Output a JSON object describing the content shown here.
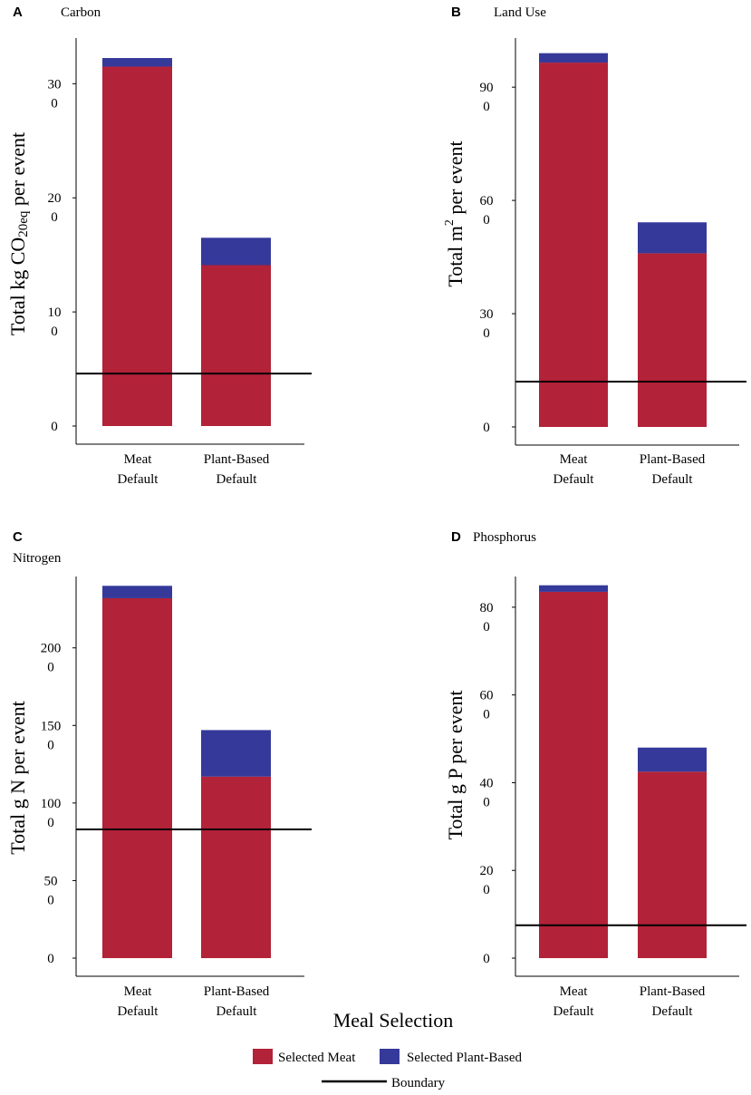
{
  "colors": {
    "meat": "#B22238",
    "plant": "#35399A",
    "boundary": "#000000"
  },
  "x_title": "Meal Selection",
  "legend": {
    "meat_label": "Selected Meat",
    "plant_label": "Selected Plant-Based",
    "boundary_label": "Boundary"
  },
  "chart_data": [
    {
      "type": "bar",
      "stacked": true,
      "panel": "A",
      "title": "Carbon",
      "ylabel": {
        "before": "Total kg CO",
        "sub": "20eq",
        "after": " per event"
      },
      "categories": [
        [
          "Meat",
          "Default"
        ],
        [
          "Plant-Based",
          "Default"
        ]
      ],
      "series": [
        {
          "name": "Selected Meat",
          "values": [
            3150,
            1410
          ]
        },
        {
          "name": "Selected Plant-Based",
          "values": [
            75,
            240
          ]
        }
      ],
      "boundary": 460,
      "ylim": [
        0,
        3400
      ],
      "ticks": [
        {
          "value": 0,
          "lines": [
            "0"
          ]
        },
        {
          "value": 1000,
          "lines": [
            "10",
            "0"
          ]
        },
        {
          "value": 2000,
          "lines": [
            "20",
            "0"
          ]
        },
        {
          "value": 3000,
          "lines": [
            "30",
            "0"
          ]
        }
      ]
    },
    {
      "type": "bar",
      "stacked": true,
      "panel": "B",
      "title": "Land Use",
      "ylabel": {
        "before": "Total m",
        "sup": "2",
        "after": " per event"
      },
      "categories": [
        [
          "Meat",
          "Default"
        ],
        [
          "Plant-Based",
          "Default"
        ]
      ],
      "series": [
        {
          "name": "Selected Meat",
          "values": [
            965,
            460
          ]
        },
        {
          "name": "Selected Plant-Based",
          "values": [
            25,
            82
          ]
        }
      ],
      "boundary": 120,
      "ylim": [
        0,
        1030
      ],
      "ticks": [
        {
          "value": 0,
          "lines": [
            "0"
          ]
        },
        {
          "value": 300,
          "lines": [
            "30",
            "0"
          ]
        },
        {
          "value": 600,
          "lines": [
            "60",
            "0"
          ]
        },
        {
          "value": 900,
          "lines": [
            "90",
            "0"
          ]
        }
      ]
    },
    {
      "type": "bar",
      "stacked": true,
      "panel": "C",
      "title": "Nitrogen",
      "ylabel": {
        "before": "Total g N per event"
      },
      "categories": [
        [
          "Meat",
          "Default"
        ],
        [
          "Plant-Based",
          "Default"
        ]
      ],
      "series": [
        {
          "name": "Selected Meat",
          "values": [
            2320,
            1170
          ]
        },
        {
          "name": "Selected Plant-Based",
          "values": [
            80,
            300
          ]
        }
      ],
      "boundary": 830,
      "ylim": [
        0,
        2460
      ],
      "ticks": [
        {
          "value": 0,
          "lines": [
            "0"
          ]
        },
        {
          "value": 500,
          "lines": [
            "50",
            "0"
          ]
        },
        {
          "value": 1000,
          "lines": [
            "100",
            "0"
          ]
        },
        {
          "value": 1500,
          "lines": [
            "150",
            "0"
          ]
        },
        {
          "value": 2000,
          "lines": [
            "200",
            "0"
          ]
        }
      ]
    },
    {
      "type": "bar",
      "stacked": true,
      "panel": "D",
      "title": "Phosphorus",
      "ylabel": {
        "before": "Total g P per event"
      },
      "categories": [
        [
          "Meat",
          "Default"
        ],
        [
          "Plant-Based",
          "Default"
        ]
      ],
      "series": [
        {
          "name": "Selected Meat",
          "values": [
            835,
            425
          ]
        },
        {
          "name": "Selected Plant-Based",
          "values": [
            15,
            55
          ]
        }
      ],
      "boundary": 75,
      "ylim": [
        0,
        870
      ],
      "ticks": [
        {
          "value": 0,
          "lines": [
            "0"
          ]
        },
        {
          "value": 200,
          "lines": [
            "20",
            "0"
          ]
        },
        {
          "value": 400,
          "lines": [
            "40",
            "0"
          ]
        },
        {
          "value": 600,
          "lines": [
            "60",
            "0"
          ]
        },
        {
          "value": 800,
          "lines": [
            "80",
            "0"
          ]
        }
      ]
    }
  ]
}
